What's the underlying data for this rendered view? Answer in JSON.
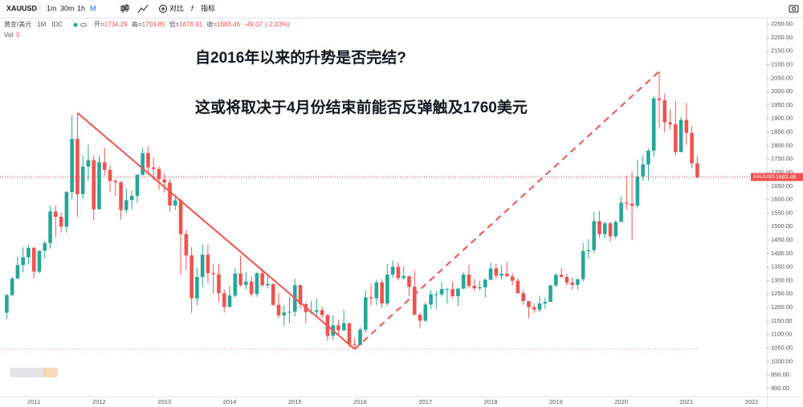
{
  "toolbar": {
    "symbol": "XAUUSD",
    "intervals": [
      "1m",
      "30m",
      "1h",
      "M"
    ],
    "compare": "对比",
    "indicators": "指标"
  },
  "legend": {
    "name": "黄金/美元",
    "interval": "1M",
    "source": "IDC",
    "open_label": "开=",
    "high_label": "高=",
    "low_label": "低=",
    "close_label": "收=",
    "change": -49.07,
    "change_pct": {
      "value": -2.83,
      "label": "(-2.83%)"
    },
    "volume_label": "Vol",
    "volume": 0
  },
  "chart_data": {
    "type": "candlestick",
    "symbol": "XAUUSD",
    "annotations": [
      "自2016年以来的升势是否完结?",
      "这或将取决于4月份结束前能否反弹触及1760美元"
    ],
    "up_color": "#26a69a",
    "down_color": "#ef5350",
    "trend_color": "#f0524f",
    "grid": false,
    "categories": [
      null,
      null,
      null,
      null,
      null,
      "2011",
      null,
      null,
      null,
      null,
      null,
      null,
      null,
      null,
      null,
      null,
      null,
      "2012",
      null,
      null,
      null,
      null,
      null,
      null,
      null,
      null,
      null,
      null,
      null,
      "2013",
      null,
      null,
      null,
      null,
      null,
      null,
      null,
      null,
      null,
      null,
      null,
      "2014",
      null,
      null,
      null,
      null,
      null,
      null,
      null,
      null,
      null,
      null,
      null,
      "2015",
      null,
      null,
      null,
      null,
      null,
      null,
      null,
      null,
      null,
      null,
      null,
      "2016",
      null,
      null,
      null,
      null,
      null,
      null,
      null,
      null,
      null,
      null,
      null,
      "2017",
      null,
      null,
      null,
      null,
      null,
      null,
      null,
      null,
      null,
      null,
      null,
      "2018",
      null,
      null,
      null,
      null,
      null,
      null,
      null,
      null,
      null,
      null,
      null,
      "2019",
      null,
      null,
      null,
      null,
      null,
      null,
      null,
      null,
      null,
      null,
      null,
      "2020",
      null,
      null,
      null,
      null,
      null,
      null,
      null,
      null,
      null,
      null,
      null,
      "2021",
      null,
      null,
      null,
      null,
      null,
      null,
      null,
      null,
      null,
      null,
      null,
      "2022",
      null,
      null
    ],
    "open": [
      1181,
      1246,
      1307,
      1357,
      1386,
      1421,
      1333,
      1410,
      1439,
      1556,
      1536,
      1500,
      1628,
      1825,
      1620,
      1722,
      1746,
      1564,
      1738,
      1710,
      1669,
      1664,
      1561,
      1598,
      1614,
      1692,
      1772,
      1719,
      1713,
      1675,
      1663,
      1578,
      1597,
      1472,
      1393,
      1234,
      1313,
      1396,
      1327,
      1323,
      1253,
      1202,
      1244,
      1326,
      1284,
      1296,
      1250,
      1327,
      1282,
      1287,
      1210,
      1171,
      1182,
      1184,
      1283,
      1212,
      1183,
      1184,
      1190,
      1172,
      1095,
      1134,
      1115,
      1142,
      1064,
      1061,
      1118,
      1238,
      1234,
      1293,
      1215,
      1322,
      1351,
      1309,
      1316,
      1277,
      1173,
      1151,
      1211,
      1249,
      1249,
      1268,
      1268,
      1242,
      1270,
      1322,
      1280,
      1271,
      1275,
      1303,
      1345,
      1318,
      1325,
      1315,
      1299,
      1253,
      1224,
      1201,
      1192,
      1215,
      1221,
      1282,
      1321,
      1313,
      1292,
      1284,
      1305,
      1409,
      1413,
      1520,
      1472,
      1512,
      1464,
      1517,
      1588,
      1585,
      1577,
      1686,
      1730,
      1781,
      1975,
      1968,
      1886,
      1879,
      1776,
      1895,
      1847,
      1734.29,
      null,
      null,
      null,
      null,
      null,
      null,
      null,
      null,
      null,
      null,
      null,
      null
    ],
    "high": [
      1251,
      1315,
      1388,
      1424,
      1431,
      1424,
      1411,
      1447,
      1576,
      1577,
      1552,
      1632,
      1913,
      1921,
      1764,
      1803,
      1764,
      1763,
      1792,
      1726,
      1677,
      1668,
      1641,
      1633,
      1693,
      1790,
      1796,
      1755,
      1723,
      1696,
      1676,
      1617,
      1605,
      1487,
      1424,
      1348,
      1434,
      1434,
      1361,
      1361,
      1267,
      1280,
      1345,
      1392,
      1331,
      1315,
      1332,
      1345,
      1322,
      1288,
      1256,
      1208,
      1239,
      1307,
      1285,
      1220,
      1224,
      1232,
      1205,
      1176,
      1170,
      1156,
      1191,
      1142,
      1088,
      1127,
      1263,
      1287,
      1303,
      1304,
      1362,
      1375,
      1367,
      1352,
      1318,
      1337,
      1180,
      1220,
      1264,
      1261,
      1295,
      1272,
      1296,
      1273,
      1331,
      1358,
      1306,
      1299,
      1308,
      1366,
      1361,
      1356,
      1369,
      1326,
      1309,
      1266,
      1224,
      1214,
      1243,
      1237,
      1284,
      1326,
      1346,
      1324,
      1310,
      1306,
      1439,
      1453,
      1555,
      1557,
      1518,
      1516,
      1525,
      1611,
      1689,
      1704,
      1748,
      1765,
      1789,
      1984,
      2075,
      1992,
      1933,
      1965,
      1906,
      1959,
      1872,
      1759.85,
      null,
      null,
      null,
      null,
      null,
      null,
      null,
      null,
      null,
      null,
      null,
      null
    ],
    "low": [
      1157,
      1242,
      1307,
      1330,
      1360,
      1309,
      1327,
      1381,
      1418,
      1462,
      1478,
      1478,
      1602,
      1535,
      1603,
      1670,
      1523,
      1563,
      1689,
      1627,
      1613,
      1527,
      1549,
      1564,
      1589,
      1687,
      1691,
      1672,
      1636,
      1626,
      1555,
      1562,
      1321,
      1338,
      1180,
      1208,
      1275,
      1291,
      1251,
      1221,
      1182,
      1202,
      1237,
      1277,
      1268,
      1240,
      1240,
      1280,
      1272,
      1206,
      1161,
      1131,
      1142,
      1167,
      1197,
      1142,
      1175,
      1170,
      1162,
      1077,
      1080,
      1098,
      1113,
      1052,
      1046,
      1061,
      1107,
      1208,
      1208,
      1199,
      1207,
      1310,
      1301,
      1303,
      1241,
      1171,
      1123,
      1146,
      1194,
      1195,
      1241,
      1214,
      1236,
      1205,
      1267,
      1271,
      1260,
      1264,
      1237,
      1301,
      1307,
      1303,
      1315,
      1282,
      1251,
      1211,
      1160,
      1180,
      1183,
      1196,
      1221,
      1276,
      1311,
      1280,
      1266,
      1266,
      1297,
      1382,
      1400,
      1459,
      1458,
      1445,
      1454,
      1517,
      1563,
      1451,
      1567,
      1671,
      1670,
      1758,
      1863,
      1849,
      1860,
      1764,
      1775,
      1803,
      1718,
      1676.91,
      null,
      null,
      null,
      null,
      null,
      null,
      null,
      null,
      null,
      null,
      null,
      null
    ],
    "close": [
      1246,
      1307,
      1357,
      1386,
      1421,
      1333,
      1410,
      1439,
      1556,
      1536,
      1500,
      1628,
      1825,
      1620,
      1722,
      1746,
      1564,
      1738,
      1710,
      1669,
      1664,
      1561,
      1598,
      1614,
      1692,
      1772,
      1719,
      1713,
      1675,
      1663,
      1578,
      1597,
      1472,
      1393,
      1234,
      1313,
      1396,
      1327,
      1323,
      1253,
      1202,
      1244,
      1326,
      1284,
      1296,
      1250,
      1327,
      1282,
      1287,
      1210,
      1171,
      1182,
      1184,
      1283,
      1212,
      1183,
      1184,
      1190,
      1172,
      1095,
      1134,
      1115,
      1142,
      1064,
      1061,
      1118,
      1238,
      1234,
      1293,
      1215,
      1322,
      1351,
      1309,
      1316,
      1277,
      1173,
      1151,
      1211,
      1249,
      1249,
      1268,
      1268,
      1242,
      1270,
      1322,
      1280,
      1271,
      1275,
      1303,
      1345,
      1318,
      1325,
      1315,
      1299,
      1253,
      1224,
      1201,
      1192,
      1215,
      1221,
      1282,
      1321,
      1313,
      1292,
      1284,
      1305,
      1409,
      1413,
      1520,
      1472,
      1512,
      1464,
      1517,
      1588,
      1585,
      1577,
      1686,
      1730,
      1781,
      1975,
      1968,
      1886,
      1879,
      1776,
      1895,
      1847,
      1734,
      1683.46,
      null,
      null,
      null,
      null,
      null,
      null,
      null,
      null,
      null,
      null,
      null,
      null
    ],
    "ylim": [
      867,
      2274
    ],
    "yticks": [
      {
        "value": 900,
        "label": "900.00"
      },
      {
        "value": 950,
        "label": "950.00"
      },
      {
        "value": 1000,
        "label": "1000.00"
      },
      {
        "value": 1050,
        "label": "1050.00"
      },
      {
        "value": 1100,
        "label": "1100.00"
      },
      {
        "value": 1150,
        "label": "1150.00"
      },
      {
        "value": 1200,
        "label": "1200.00"
      },
      {
        "value": 1250,
        "label": "1250.00"
      },
      {
        "value": 1300,
        "label": "1300.00"
      },
      {
        "value": 1350,
        "label": "1350.00"
      },
      {
        "value": 1400,
        "label": "1400.00"
      },
      {
        "value": 1450,
        "label": "1450.00"
      },
      {
        "value": 1500,
        "label": "1500.00"
      },
      {
        "value": 1550,
        "label": "1550.00"
      },
      {
        "value": 1600,
        "label": "1600.00"
      },
      {
        "value": 1650,
        "label": "1650.00"
      },
      {
        "value": 1700,
        "label": "1700.00"
      },
      {
        "value": 1750,
        "label": "1750.00"
      },
      {
        "value": 1800,
        "label": "1800.00"
      },
      {
        "value": 1850,
        "label": "1850.00"
      },
      {
        "value": 1900,
        "label": "1900.00"
      },
      {
        "value": 1950,
        "label": "1950.00"
      },
      {
        "value": 2000,
        "label": "2000.00"
      },
      {
        "value": 2050,
        "label": "2050.00"
      },
      {
        "value": 2100,
        "label": "2100.00"
      },
      {
        "value": 2150,
        "label": "2150.00"
      },
      {
        "value": 2200,
        "label": "2200.00"
      },
      {
        "value": 2250,
        "label": "2250.00"
      }
    ]
  }
}
